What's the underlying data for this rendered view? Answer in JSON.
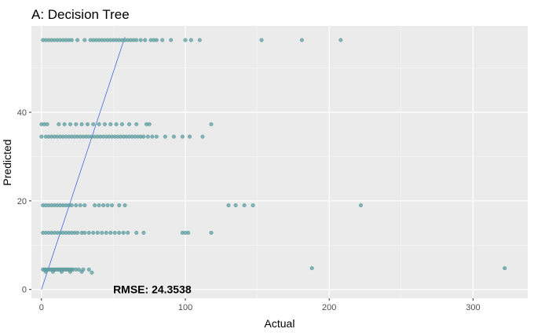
{
  "chart_data": {
    "type": "scatter",
    "title": "A: Decision Tree",
    "xlabel": "Actual",
    "ylabel": "Predicted",
    "xlim": [
      -7,
      338
    ],
    "ylim": [
      -2,
      59.5
    ],
    "x_ticks": [
      0,
      100,
      200,
      300
    ],
    "y_ticks": [
      0,
      20,
      40
    ],
    "grid": true,
    "point_color": "#5f9ea0",
    "line_color": "#4169e1",
    "reference_line": {
      "from": [
        0,
        0
      ],
      "to": [
        58,
        57
      ]
    },
    "annotation": {
      "text": "RMSE: 24.3538",
      "x": 77,
      "y": 0
    },
    "points": [
      {
        "x": 1,
        "y": 4.5
      },
      {
        "x": 2,
        "y": 4.5
      },
      {
        "x": 3,
        "y": 4.5
      },
      {
        "x": 4,
        "y": 4.5
      },
      {
        "x": 5,
        "y": 4.5
      },
      {
        "x": 6,
        "y": 4.5
      },
      {
        "x": 7,
        "y": 4.5
      },
      {
        "x": 8,
        "y": 4.5
      },
      {
        "x": 9,
        "y": 4.5
      },
      {
        "x": 10,
        "y": 4.5
      },
      {
        "x": 11,
        "y": 4.5
      },
      {
        "x": 12,
        "y": 4.5
      },
      {
        "x": 13,
        "y": 4.5
      },
      {
        "x": 14,
        "y": 4.5
      },
      {
        "x": 15,
        "y": 4.5
      },
      {
        "x": 16,
        "y": 4.5
      },
      {
        "x": 17,
        "y": 4.5
      },
      {
        "x": 18,
        "y": 4.5
      },
      {
        "x": 19,
        "y": 4.5
      },
      {
        "x": 20,
        "y": 4.5
      },
      {
        "x": 21,
        "y": 4.5
      },
      {
        "x": 22,
        "y": 4.5
      },
      {
        "x": 24,
        "y": 4.5
      },
      {
        "x": 26,
        "y": 4.5
      },
      {
        "x": 29,
        "y": 4.5
      },
      {
        "x": 33,
        "y": 4.5
      },
      {
        "x": 35,
        "y": 3.8
      },
      {
        "x": 188,
        "y": 4.8
      },
      {
        "x": 322,
        "y": 4.8
      },
      {
        "x": 3,
        "y": 4
      },
      {
        "x": 8,
        "y": 4
      },
      {
        "x": 14,
        "y": 4
      },
      {
        "x": 20,
        "y": 4
      },
      {
        "x": 28,
        "y": 4
      },
      {
        "x": 1,
        "y": 12.8
      },
      {
        "x": 3,
        "y": 12.8
      },
      {
        "x": 5,
        "y": 12.8
      },
      {
        "x": 7,
        "y": 12.8
      },
      {
        "x": 9,
        "y": 12.8
      },
      {
        "x": 11,
        "y": 12.8
      },
      {
        "x": 13,
        "y": 12.8
      },
      {
        "x": 15,
        "y": 12.8
      },
      {
        "x": 17,
        "y": 12.8
      },
      {
        "x": 19,
        "y": 12.8
      },
      {
        "x": 21,
        "y": 12.8
      },
      {
        "x": 23,
        "y": 12.8
      },
      {
        "x": 25,
        "y": 12.8
      },
      {
        "x": 28,
        "y": 12.8
      },
      {
        "x": 30,
        "y": 12.8
      },
      {
        "x": 33,
        "y": 12.8
      },
      {
        "x": 36,
        "y": 12.8
      },
      {
        "x": 39,
        "y": 12.8
      },
      {
        "x": 42,
        "y": 12.8
      },
      {
        "x": 45,
        "y": 12.8
      },
      {
        "x": 48,
        "y": 12.8
      },
      {
        "x": 51,
        "y": 12.8
      },
      {
        "x": 54,
        "y": 12.8
      },
      {
        "x": 57,
        "y": 12.8
      },
      {
        "x": 60,
        "y": 12.8
      },
      {
        "x": 66,
        "y": 12.8
      },
      {
        "x": 71,
        "y": 12.8
      },
      {
        "x": 98,
        "y": 12.8
      },
      {
        "x": 100,
        "y": 12.8
      },
      {
        "x": 102,
        "y": 12.8
      },
      {
        "x": 118,
        "y": 12.8
      },
      {
        "x": 1,
        "y": 19
      },
      {
        "x": 3,
        "y": 19
      },
      {
        "x": 5,
        "y": 19
      },
      {
        "x": 7,
        "y": 19
      },
      {
        "x": 9,
        "y": 19
      },
      {
        "x": 11,
        "y": 19
      },
      {
        "x": 13,
        "y": 19
      },
      {
        "x": 15,
        "y": 19
      },
      {
        "x": 17,
        "y": 19
      },
      {
        "x": 19,
        "y": 19
      },
      {
        "x": 21,
        "y": 19
      },
      {
        "x": 24,
        "y": 19
      },
      {
        "x": 27,
        "y": 19
      },
      {
        "x": 30,
        "y": 19
      },
      {
        "x": 37,
        "y": 19
      },
      {
        "x": 40,
        "y": 19
      },
      {
        "x": 43,
        "y": 19
      },
      {
        "x": 46,
        "y": 19
      },
      {
        "x": 49,
        "y": 19
      },
      {
        "x": 54,
        "y": 19
      },
      {
        "x": 58,
        "y": 19
      },
      {
        "x": 130,
        "y": 19
      },
      {
        "x": 135,
        "y": 19
      },
      {
        "x": 141,
        "y": 19
      },
      {
        "x": 147,
        "y": 19
      },
      {
        "x": 222,
        "y": 19
      },
      {
        "x": 0,
        "y": 34.5
      },
      {
        "x": 3,
        "y": 34.5
      },
      {
        "x": 5,
        "y": 34.5
      },
      {
        "x": 7,
        "y": 34.5
      },
      {
        "x": 9,
        "y": 34.5
      },
      {
        "x": 11,
        "y": 34.5
      },
      {
        "x": 13,
        "y": 34.5
      },
      {
        "x": 15,
        "y": 34.5
      },
      {
        "x": 17,
        "y": 34.5
      },
      {
        "x": 19,
        "y": 34.5
      },
      {
        "x": 21,
        "y": 34.5
      },
      {
        "x": 23,
        "y": 34.5
      },
      {
        "x": 25,
        "y": 34.5
      },
      {
        "x": 27,
        "y": 34.5
      },
      {
        "x": 29,
        "y": 34.5
      },
      {
        "x": 31,
        "y": 34.5
      },
      {
        "x": 33,
        "y": 34.5
      },
      {
        "x": 35,
        "y": 34.5
      },
      {
        "x": 37,
        "y": 34.5
      },
      {
        "x": 39,
        "y": 34.5
      },
      {
        "x": 41,
        "y": 34.5
      },
      {
        "x": 43,
        "y": 34.5
      },
      {
        "x": 45,
        "y": 34.5
      },
      {
        "x": 47,
        "y": 34.5
      },
      {
        "x": 49,
        "y": 34.5
      },
      {
        "x": 51,
        "y": 34.5
      },
      {
        "x": 53,
        "y": 34.5
      },
      {
        "x": 55,
        "y": 34.5
      },
      {
        "x": 57,
        "y": 34.5
      },
      {
        "x": 59,
        "y": 34.5
      },
      {
        "x": 61,
        "y": 34.5
      },
      {
        "x": 63,
        "y": 34.5
      },
      {
        "x": 65,
        "y": 34.5
      },
      {
        "x": 67,
        "y": 34.5
      },
      {
        "x": 69,
        "y": 34.5
      },
      {
        "x": 71,
        "y": 34.5
      },
      {
        "x": 74,
        "y": 34.5
      },
      {
        "x": 77,
        "y": 34.5
      },
      {
        "x": 80,
        "y": 34.5
      },
      {
        "x": 86,
        "y": 34.5
      },
      {
        "x": 92,
        "y": 34.5
      },
      {
        "x": 98,
        "y": 34.5
      },
      {
        "x": 103,
        "y": 34.5
      },
      {
        "x": 112,
        "y": 34.5
      },
      {
        "x": 0,
        "y": 37.3
      },
      {
        "x": 2,
        "y": 37.3
      },
      {
        "x": 4,
        "y": 37.3
      },
      {
        "x": 12,
        "y": 37.3
      },
      {
        "x": 16,
        "y": 37.3
      },
      {
        "x": 20,
        "y": 37.3
      },
      {
        "x": 24,
        "y": 37.3
      },
      {
        "x": 28,
        "y": 37.3
      },
      {
        "x": 32,
        "y": 37.3
      },
      {
        "x": 36,
        "y": 37.3
      },
      {
        "x": 40,
        "y": 37.3
      },
      {
        "x": 44,
        "y": 37.3
      },
      {
        "x": 48,
        "y": 37.3
      },
      {
        "x": 52,
        "y": 37.3
      },
      {
        "x": 56,
        "y": 37.3
      },
      {
        "x": 61,
        "y": 37.3
      },
      {
        "x": 66,
        "y": 37.3
      },
      {
        "x": 73,
        "y": 37.3
      },
      {
        "x": 75,
        "y": 37.3
      },
      {
        "x": 118,
        "y": 37.3
      },
      {
        "x": 1,
        "y": 56.3
      },
      {
        "x": 3,
        "y": 56.3
      },
      {
        "x": 5,
        "y": 56.3
      },
      {
        "x": 7,
        "y": 56.3
      },
      {
        "x": 9,
        "y": 56.3
      },
      {
        "x": 11,
        "y": 56.3
      },
      {
        "x": 13,
        "y": 56.3
      },
      {
        "x": 15,
        "y": 56.3
      },
      {
        "x": 17,
        "y": 56.3
      },
      {
        "x": 19,
        "y": 56.3
      },
      {
        "x": 21,
        "y": 56.3
      },
      {
        "x": 25,
        "y": 56.3
      },
      {
        "x": 30,
        "y": 56.3
      },
      {
        "x": 34,
        "y": 56.3
      },
      {
        "x": 36,
        "y": 56.3
      },
      {
        "x": 38,
        "y": 56.3
      },
      {
        "x": 40,
        "y": 56.3
      },
      {
        "x": 42,
        "y": 56.3
      },
      {
        "x": 44,
        "y": 56.3
      },
      {
        "x": 46,
        "y": 56.3
      },
      {
        "x": 48,
        "y": 56.3
      },
      {
        "x": 50,
        "y": 56.3
      },
      {
        "x": 52,
        "y": 56.3
      },
      {
        "x": 54,
        "y": 56.3
      },
      {
        "x": 56,
        "y": 56.3
      },
      {
        "x": 58,
        "y": 56.3
      },
      {
        "x": 60,
        "y": 56.3
      },
      {
        "x": 62,
        "y": 56.3
      },
      {
        "x": 64,
        "y": 56.3
      },
      {
        "x": 66,
        "y": 56.3
      },
      {
        "x": 69,
        "y": 56.3
      },
      {
        "x": 72,
        "y": 56.3
      },
      {
        "x": 76,
        "y": 56.3
      },
      {
        "x": 78,
        "y": 56.3
      },
      {
        "x": 80,
        "y": 56.3
      },
      {
        "x": 84,
        "y": 56.3
      },
      {
        "x": 90,
        "y": 56.3
      },
      {
        "x": 100,
        "y": 56.3
      },
      {
        "x": 104,
        "y": 56.3
      },
      {
        "x": 110,
        "y": 56.3
      },
      {
        "x": 153,
        "y": 56.3
      },
      {
        "x": 181,
        "y": 56.3
      },
      {
        "x": 208,
        "y": 56.3
      }
    ]
  }
}
